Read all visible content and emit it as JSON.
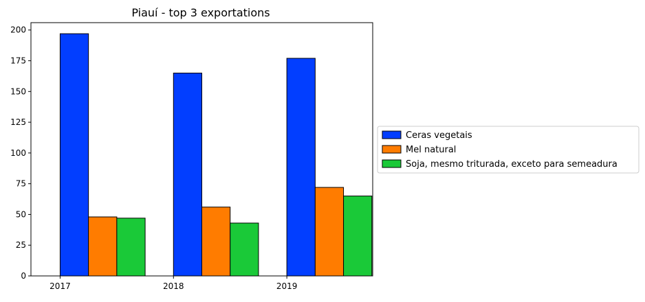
{
  "chart_data": {
    "type": "bar",
    "title": "Piauí - top 3 exportations",
    "xlabel": "",
    "ylabel": "",
    "categories": [
      "2017",
      "2018",
      "2019"
    ],
    "ylim": [
      0,
      206
    ],
    "yticks": [
      0,
      25,
      50,
      75,
      100,
      125,
      150,
      175,
      200
    ],
    "grid": false,
    "legend_position": "right-outside",
    "series": [
      {
        "name": "Ceras vegetais",
        "color": "#023eff",
        "values": [
          197,
          165,
          177
        ]
      },
      {
        "name": "Mel natural",
        "color": "#ff7c00",
        "values": [
          48,
          56,
          72
        ]
      },
      {
        "name": "Soja, mesmo triturada, exceto para semeadura",
        "color": "#1ac938",
        "values": [
          47,
          43,
          65
        ]
      }
    ]
  }
}
